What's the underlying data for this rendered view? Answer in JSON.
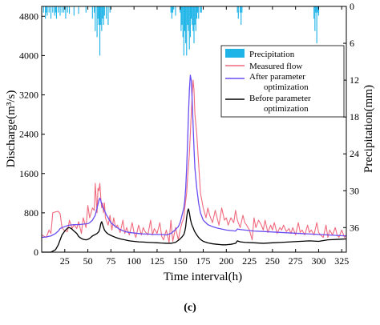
{
  "chart_data": {
    "type": "line",
    "panel_label": "(c)",
    "xlabel": "Time interval(h)",
    "ylabel_left": "Discharge(m³/s)",
    "ylabel_right": "Precipitation(mm)",
    "xlim": [
      0,
      330
    ],
    "ylim_left": [
      0,
      5000
    ],
    "ylim_right": [
      0,
      40
    ],
    "right_axis_inverted": true,
    "x_ticks": [
      "25",
      "50",
      "75",
      "100",
      "125",
      "150",
      "175",
      "200",
      "225",
      "250",
      "275",
      "300",
      "325"
    ],
    "y_ticks_left": [
      "0",
      "800",
      "1600",
      "2400",
      "3200",
      "4000",
      "4800"
    ],
    "y_ticks_right": [
      "0",
      "6",
      "12",
      "18",
      "24",
      "30",
      "36"
    ],
    "legend_position": "upper-right",
    "legend": [
      {
        "label": "Precipitation",
        "kind": "bar"
      },
      {
        "label": "Measured flow",
        "kind": "line"
      },
      {
        "label": "After parameter optimization",
        "kind": "line",
        "lines": [
          "After parameter",
          "optimization"
        ]
      },
      {
        "label": "Before parameter optimization",
        "kind": "line",
        "lines": [
          "Before parameter",
          "optimization"
        ]
      }
    ],
    "colors": {
      "precipitation": "#1fb4e8",
      "measured": "#f06a7e",
      "after": "#6a4df2",
      "before": "#000000"
    },
    "precipitation": {
      "name": "Precipitation",
      "x": [
        2,
        4,
        5,
        6,
        8,
        10,
        12,
        14,
        15,
        16,
        18,
        20,
        22,
        24,
        26,
        28,
        30,
        35,
        40,
        48,
        55,
        57,
        58,
        60,
        61,
        62,
        63,
        64,
        65,
        66,
        67,
        68,
        70,
        72,
        74,
        140,
        141,
        142,
        143,
        145,
        150,
        151,
        152,
        153,
        154,
        155,
        156,
        157,
        158,
        159,
        160,
        161,
        162,
        163,
        164,
        165,
        166,
        167,
        168,
        169,
        170,
        172,
        173,
        212,
        213,
        215,
        216,
        217,
        295,
        296,
        297,
        298,
        299,
        300
      ],
      "values": [
        1,
        2,
        1,
        1.5,
        1,
        2,
        1,
        1.5,
        1,
        2,
        1,
        1.5,
        1,
        1,
        2,
        1,
        1.2,
        1.5,
        1.2,
        1,
        2,
        1,
        4,
        5,
        2,
        3,
        8,
        3,
        4,
        2,
        3,
        1.5,
        2,
        3,
        1,
        1,
        2,
        1,
        0.5,
        1.5,
        1,
        4,
        3,
        5,
        8,
        4,
        6,
        8,
        3,
        4,
        7,
        5,
        2,
        3,
        4,
        6,
        3,
        4,
        2,
        1,
        2,
        1,
        1,
        1,
        2,
        1,
        3,
        1,
        2,
        4,
        1,
        6,
        1,
        1.5
      ]
    },
    "series": [
      {
        "name": "Measured flow",
        "x": [
          0,
          5,
          8,
          10,
          12,
          15,
          18,
          20,
          22,
          25,
          28,
          30,
          33,
          35,
          38,
          40,
          43,
          45,
          48,
          50,
          52,
          55,
          57,
          58,
          60,
          61,
          62,
          63,
          64,
          65,
          66,
          67,
          68,
          69,
          70,
          72,
          74,
          76,
          78,
          80,
          82,
          85,
          88,
          90,
          92,
          95,
          98,
          100,
          102,
          105,
          108,
          110,
          112,
          115,
          118,
          120,
          122,
          125,
          128,
          130,
          132,
          135,
          138,
          140,
          142,
          145,
          148,
          150,
          152,
          154,
          155,
          157,
          158,
          160,
          161,
          162,
          163,
          164,
          165,
          166,
          168,
          170,
          172,
          175,
          178,
          180,
          182,
          185,
          188,
          190,
          192,
          195,
          198,
          200,
          202,
          205,
          208,
          210,
          212,
          215,
          218,
          220,
          222,
          225,
          228,
          230,
          232,
          235,
          238,
          240,
          242,
          245,
          248,
          250,
          252,
          255,
          258,
          260,
          262,
          265,
          268,
          270,
          272,
          275,
          278,
          280,
          282,
          285,
          288,
          290,
          292,
          295,
          298,
          300,
          302,
          305,
          308,
          310,
          312,
          315,
          318,
          320,
          322,
          325,
          328,
          330
        ],
        "values": [
          350,
          300,
          450,
          380,
          800,
          820,
          830,
          780,
          500,
          430,
          420,
          650,
          480,
          560,
          480,
          620,
          380,
          700,
          500,
          950,
          700,
          900,
          850,
          1400,
          800,
          1300,
          1250,
          1400,
          1100,
          900,
          1000,
          800,
          1000,
          700,
          650,
          550,
          750,
          450,
          700,
          500,
          550,
          400,
          650,
          380,
          500,
          350,
          600,
          400,
          300,
          550,
          350,
          500,
          420,
          350,
          650,
          350,
          480,
          380,
          600,
          320,
          250,
          450,
          200,
          650,
          220,
          500,
          250,
          450,
          600,
          700,
          900,
          1200,
          1500,
          2000,
          2400,
          2800,
          3200,
          3500,
          3300,
          2800,
          2400,
          1800,
          1200,
          900,
          700,
          900,
          750,
          600,
          850,
          700,
          550,
          900,
          650,
          700,
          550,
          700,
          600,
          850,
          650,
          500,
          750,
          600,
          550,
          450,
          250,
          700,
          500,
          650,
          550,
          450,
          650,
          400,
          550,
          450,
          600,
          380,
          500,
          450,
          550,
          420,
          480,
          380,
          500,
          350,
          600,
          400,
          450,
          350,
          550,
          400,
          450,
          350,
          600,
          400,
          350,
          300,
          550,
          300,
          450,
          350,
          500,
          350,
          300,
          450,
          300,
          350
        ],
        "color": "#f06a7e"
      },
      {
        "name": "After parameter optimization",
        "x": [
          0,
          5,
          10,
          15,
          18,
          20,
          22,
          25,
          28,
          30,
          35,
          40,
          45,
          50,
          52,
          55,
          58,
          60,
          62,
          63,
          64,
          65,
          66,
          68,
          70,
          72,
          75,
          80,
          85,
          90,
          95,
          100,
          105,
          110,
          115,
          120,
          125,
          130,
          135,
          140,
          145,
          148,
          150,
          152,
          154,
          155,
          156,
          157,
          158,
          159,
          160,
          161,
          162,
          163,
          164,
          165,
          166,
          168,
          170,
          172,
          175,
          180,
          185,
          190,
          195,
          200,
          205,
          210,
          212,
          215,
          220,
          225,
          230,
          240,
          250,
          260,
          270,
          280,
          290,
          300,
          310,
          320,
          330
        ],
        "values": [
          300,
          310,
          330,
          380,
          430,
          480,
          500,
          520,
          540,
          550,
          560,
          560,
          570,
          580,
          600,
          650,
          750,
          900,
          1050,
          1100,
          1050,
          980,
          920,
          850,
          760,
          700,
          600,
          520,
          460,
          420,
          400,
          390,
          380,
          370,
          370,
          360,
          360,
          360,
          350,
          380,
          460,
          520,
          600,
          750,
          900,
          1050,
          1300,
          1700,
          2200,
          2800,
          3300,
          3600,
          3500,
          3100,
          2600,
          2100,
          1700,
          1300,
          1000,
          800,
          650,
          560,
          520,
          490,
          470,
          450,
          440,
          430,
          470,
          460,
          450,
          440,
          430,
          420,
          410,
          400,
          390,
          380,
          370,
          360,
          350,
          340,
          330
        ],
        "color": "#6a4df2"
      },
      {
        "name": "Before parameter optimization",
        "x": [
          0,
          5,
          10,
          15,
          18,
          20,
          22,
          25,
          28,
          30,
          32,
          35,
          38,
          40,
          42,
          45,
          48,
          50,
          52,
          55,
          58,
          60,
          62,
          63,
          64,
          65,
          66,
          68,
          70,
          72,
          75,
          80,
          85,
          90,
          95,
          100,
          105,
          110,
          115,
          120,
          125,
          130,
          135,
          140,
          145,
          148,
          150,
          152,
          154,
          155,
          156,
          157,
          158,
          159,
          160,
          161,
          162,
          163,
          164,
          165,
          166,
          168,
          170,
          172,
          175,
          180,
          185,
          190,
          195,
          200,
          205,
          210,
          212,
          215,
          220,
          230,
          240,
          250,
          260,
          270,
          280,
          290,
          300,
          310,
          320,
          330
        ],
        "values": [
          0,
          0,
          0,
          50,
          150,
          250,
          350,
          430,
          490,
          500,
          480,
          430,
          380,
          320,
          290,
          260,
          250,
          260,
          280,
          330,
          360,
          380,
          420,
          480,
          580,
          620,
          560,
          450,
          400,
          370,
          340,
          300,
          270,
          250,
          230,
          220,
          210,
          205,
          200,
          195,
          190,
          185,
          180,
          180,
          200,
          240,
          270,
          310,
          360,
          420,
          520,
          700,
          830,
          880,
          800,
          680,
          600,
          540,
          500,
          450,
          410,
          350,
          300,
          260,
          220,
          190,
          170,
          160,
          150,
          150,
          160,
          180,
          230,
          210,
          200,
          190,
          180,
          190,
          200,
          210,
          220,
          230,
          220,
          250,
          260,
          270
        ],
        "color": "#000000"
      }
    ]
  }
}
